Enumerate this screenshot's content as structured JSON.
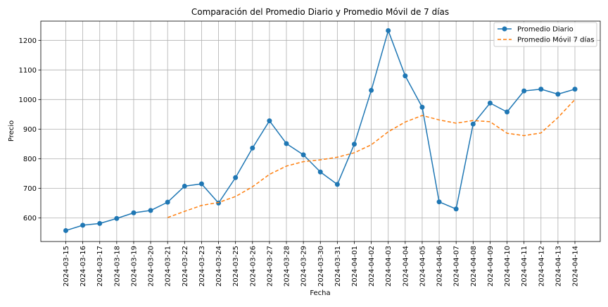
{
  "chart_data": {
    "type": "line",
    "title": "Comparación del Promedio Diario y Promedio Móvil de 7 días",
    "xlabel": "Fecha",
    "ylabel": "Precio",
    "ylim": [
      520,
      1265
    ],
    "yticks": [
      600,
      700,
      800,
      900,
      1000,
      1100,
      1200
    ],
    "grid": true,
    "legend_position": "top-right",
    "x": [
      "2024-03-15",
      "2024-03-16",
      "2024-03-17",
      "2024-03-18",
      "2024-03-19",
      "2024-03-20",
      "2024-03-21",
      "2024-03-22",
      "2024-03-23",
      "2024-03-24",
      "2024-03-25",
      "2024-03-26",
      "2024-03-27",
      "2024-03-28",
      "2024-03-29",
      "2024-03-30",
      "2024-03-31",
      "2024-04-01",
      "2024-04-02",
      "2024-04-03",
      "2024-04-04",
      "2024-04-05",
      "2024-04-06",
      "2024-04-07",
      "2024-04-08",
      "2024-04-09",
      "2024-04-10",
      "2024-04-11",
      "2024-04-12",
      "2024-04-13",
      "2024-04-14"
    ],
    "series": [
      {
        "name": "Promedio Diario",
        "color": "#1f77b4",
        "style": "solid-marker",
        "values": [
          557,
          575,
          581,
          598,
          617,
          625,
          653,
          707,
          715,
          650,
          736,
          836,
          928,
          851,
          813,
          755,
          713,
          849,
          1031,
          1233,
          1080,
          974,
          654,
          630,
          917,
          988,
          958,
          1029,
          1035,
          1018,
          1035
        ]
      },
      {
        "name": "Promedio Móvil 7 días",
        "color": "#ff7f0e",
        "style": "dashed",
        "values": [
          null,
          null,
          null,
          null,
          null,
          null,
          601,
          622,
          642,
          652,
          672,
          705,
          747,
          775,
          790,
          796,
          805,
          820,
          847,
          891,
          924,
          946,
          931,
          920,
          929,
          925,
          886,
          878,
          887,
          939,
          1000
        ]
      }
    ]
  }
}
